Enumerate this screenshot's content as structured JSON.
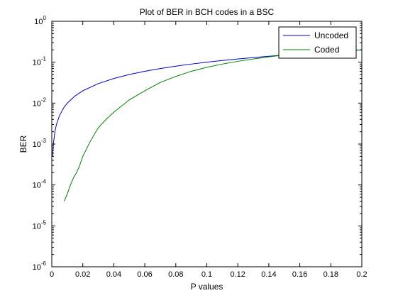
{
  "chart_data": {
    "type": "line",
    "title": "Plot of BER in BCH codes in a BSC",
    "xlabel": "P values",
    "ylabel": "BER",
    "xlim": [
      0,
      0.2
    ],
    "ylim": [
      1e-06,
      1
    ],
    "yscale": "log",
    "grid": false,
    "legend_position": "top-right",
    "x_ticks": [
      {
        "value": 0,
        "label": "0"
      },
      {
        "value": 0.02,
        "label": "0.02"
      },
      {
        "value": 0.04,
        "label": "0.04"
      },
      {
        "value": 0.06,
        "label": "0.06"
      },
      {
        "value": 0.08,
        "label": "0.08"
      },
      {
        "value": 0.1,
        "label": "0.1"
      },
      {
        "value": 0.12,
        "label": "0.12"
      },
      {
        "value": 0.14,
        "label": "0.14"
      },
      {
        "value": 0.16,
        "label": "0.16"
      },
      {
        "value": 0.18,
        "label": "0.18"
      },
      {
        "value": 0.2,
        "label": "0.2"
      }
    ],
    "y_ticks": [
      {
        "value": 1,
        "base": "10",
        "exp": "0"
      },
      {
        "value": 0.1,
        "base": "10",
        "exp": "-1"
      },
      {
        "value": 0.01,
        "base": "10",
        "exp": "-2"
      },
      {
        "value": 0.001,
        "base": "10",
        "exp": "-3"
      },
      {
        "value": 0.0001,
        "base": "10",
        "exp": "-4"
      },
      {
        "value": 1e-05,
        "base": "10",
        "exp": "-5"
      },
      {
        "value": 1e-06,
        "base": "10",
        "exp": "-6"
      }
    ],
    "series": [
      {
        "name": "Uncoded",
        "color": "#0000cc",
        "x": [
          0.0005,
          0.001,
          0.002,
          0.003,
          0.005,
          0.008,
          0.01,
          0.015,
          0.02,
          0.03,
          0.04,
          0.05,
          0.06,
          0.07,
          0.08,
          0.09,
          0.1,
          0.11,
          0.12,
          0.13,
          0.14,
          0.15,
          0.16,
          0.17,
          0.18,
          0.19,
          0.2
        ],
        "y": [
          0.0005,
          0.001,
          0.002,
          0.003,
          0.005,
          0.008,
          0.01,
          0.015,
          0.02,
          0.03,
          0.04,
          0.05,
          0.06,
          0.07,
          0.08,
          0.09,
          0.1,
          0.11,
          0.12,
          0.13,
          0.14,
          0.15,
          0.16,
          0.17,
          0.18,
          0.19,
          0.2
        ]
      },
      {
        "name": "Coded",
        "color": "#008000",
        "x": [
          0.008,
          0.01,
          0.012,
          0.014,
          0.016,
          0.018,
          0.02,
          0.025,
          0.03,
          0.035,
          0.04,
          0.05,
          0.06,
          0.07,
          0.08,
          0.09,
          0.1,
          0.11,
          0.12,
          0.13,
          0.14,
          0.15,
          0.16,
          0.17,
          0.18,
          0.19,
          0.2
        ],
        "y": [
          4e-05,
          6e-05,
          0.0001,
          0.00015,
          0.0002,
          0.0003,
          0.0005,
          0.0012,
          0.0025,
          0.004,
          0.006,
          0.012,
          0.02,
          0.032,
          0.045,
          0.06,
          0.075,
          0.09,
          0.105,
          0.12,
          0.135,
          0.15,
          0.16,
          0.17,
          0.18,
          0.19,
          0.2
        ]
      }
    ]
  }
}
